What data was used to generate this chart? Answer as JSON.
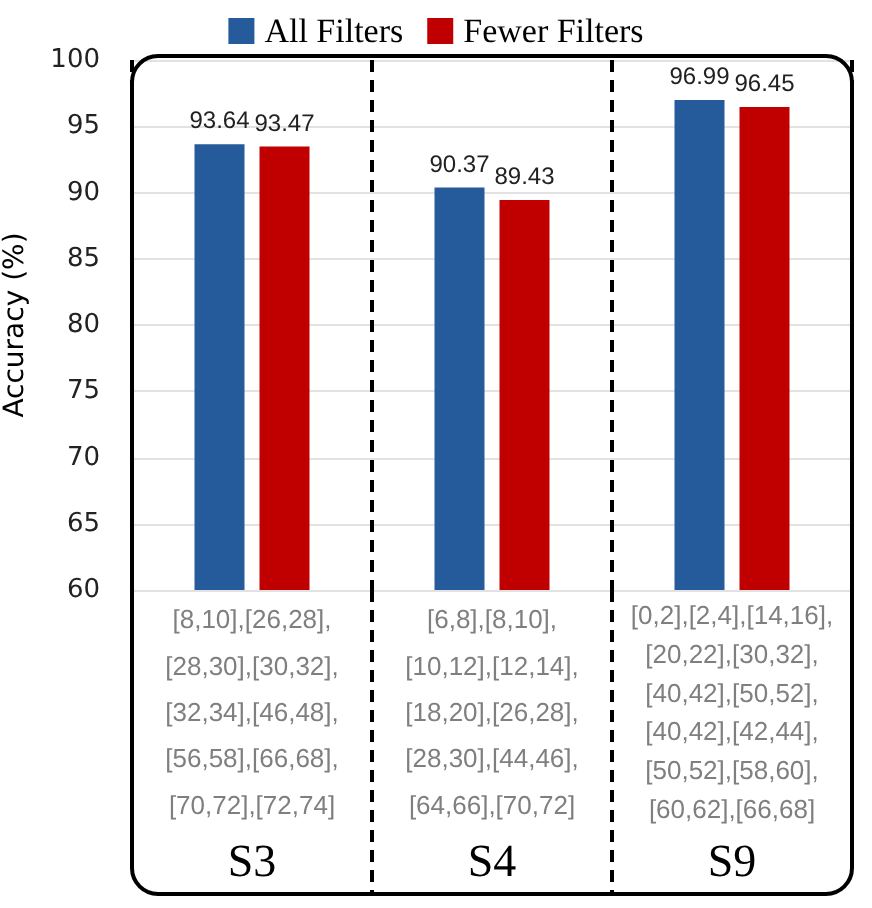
{
  "chart_data": {
    "type": "bar",
    "ylabel": "Accuracy (%)",
    "categories": [
      "S3",
      "S4",
      "S9"
    ],
    "series": [
      {
        "name": "All Filters",
        "color": "#255a9b",
        "values": [
          93.64,
          90.37,
          96.99
        ]
      },
      {
        "name": "Fewer Filters",
        "color": "#c00000",
        "values": [
          93.47,
          89.43,
          96.45
        ]
      }
    ],
    "ylim": [
      60,
      100
    ],
    "yticks": [
      60,
      65,
      70,
      75,
      80,
      85,
      90,
      95,
      100
    ],
    "grid": true,
    "legend": "top",
    "data_labels": true,
    "annotations": [
      "[8,10],[26,28],[28,30],[30,32],[32,34],[46,48],[56,58],[66,68],[70,72],[72,74]",
      "[6,8],[8,10],[10,12],[12,14],[18,20],[26,28],[28,30],[44,46],[64,66],[70,72]",
      "[0,2],[2,4],[14,16],[20,22],[30,32],[40,42],[50,52],[40,42],[42,44],[50,52],[58,60],[60,62],[66,68]"
    ]
  }
}
